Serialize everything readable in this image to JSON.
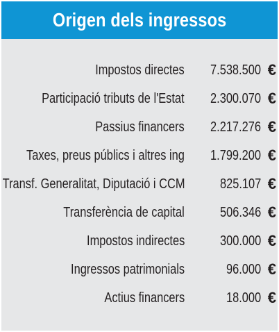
{
  "header": {
    "title": "Origen dels ingressos"
  },
  "currency_symbol": "€",
  "rows": [
    {
      "label": "Impostos directes",
      "amount": "7.538.500"
    },
    {
      "label": "Participació tributs de l'Estat",
      "amount": "2.300.070"
    },
    {
      "label": "Passius financers",
      "amount": "2.217.276"
    },
    {
      "label": "Taxes, preus públics i altres ing",
      "amount": "1.799.200"
    },
    {
      "label": "Transf. Generalitat, Diputació i CCM",
      "amount": "825.107"
    },
    {
      "label": "Transferència de capital",
      "amount": "506.346"
    },
    {
      "label": "Impostos indirectes",
      "amount": "300.000"
    },
    {
      "label": "Ingressos patrimonials",
      "amount": "96.000"
    },
    {
      "label": "Actius financers",
      "amount": "18.000"
    }
  ],
  "colors": {
    "header_bg": "#0f95d4",
    "panel_bg": "#e6e7e8",
    "text": "#231f20"
  }
}
